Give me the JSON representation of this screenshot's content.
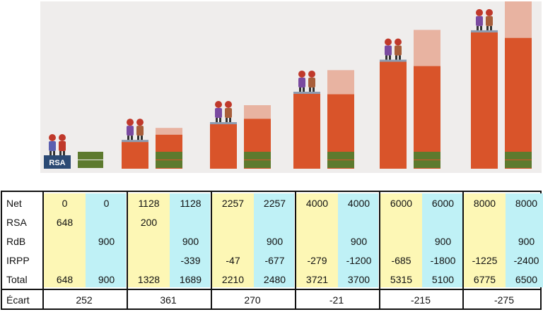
{
  "chart_data": {
    "type": "table",
    "row_labels": [
      "Net",
      "RSA",
      "RdB",
      "IRPP",
      "Total",
      "Écart"
    ],
    "groups": [
      {
        "a": {
          "Net": "0",
          "RSA": "648",
          "RdB": "",
          "IRPP": "",
          "Total": "648"
        },
        "b": {
          "Net": "0",
          "RSA": "",
          "RdB": "900",
          "IRPP": "",
          "Total": "900"
        },
        "ecart": "252"
      },
      {
        "a": {
          "Net": "1128",
          "RSA": "200",
          "RdB": "",
          "IRPP": "",
          "Total": "1328"
        },
        "b": {
          "Net": "1128",
          "RSA": "",
          "RdB": "900",
          "IRPP": "-339",
          "Total": "1689"
        },
        "ecart": "361"
      },
      {
        "a": {
          "Net": "2257",
          "RSA": "",
          "RdB": "",
          "IRPP": "-47",
          "Total": "2210"
        },
        "b": {
          "Net": "2257",
          "RSA": "",
          "RdB": "900",
          "IRPP": "-677",
          "Total": "2480"
        },
        "ecart": "270"
      },
      {
        "a": {
          "Net": "4000",
          "RSA": "",
          "RdB": "",
          "IRPP": "-279",
          "Total": "3721"
        },
        "b": {
          "Net": "4000",
          "RSA": "",
          "RdB": "900",
          "IRPP": "-1200",
          "Total": "3700"
        },
        "ecart": "-21"
      },
      {
        "a": {
          "Net": "6000",
          "RSA": "",
          "RdB": "",
          "IRPP": "-685",
          "Total": "5315"
        },
        "b": {
          "Net": "6000",
          "RSA": "",
          "RdB": "900",
          "IRPP": "-1800",
          "Total": "5100"
        },
        "ecart": "-215"
      },
      {
        "a": {
          "Net": "8000",
          "RSA": "",
          "RdB": "",
          "IRPP": "-1225",
          "Total": "6775"
        },
        "b": {
          "Net": "8000",
          "RSA": "",
          "RdB": "900",
          "IRPP": "-2400",
          "Total": "6500"
        },
        "ecart": "-275"
      }
    ]
  },
  "illustration": {
    "rsa_label": "RSA",
    "colors": {
      "background": "#efedec",
      "bar": "#d9542a",
      "bar_light": "#e8b3a1",
      "green_block": "#5d7a2e",
      "navy_block": "#2b4a74",
      "col_a": "#fdf7b5",
      "col_b": "#bff1f6"
    }
  }
}
